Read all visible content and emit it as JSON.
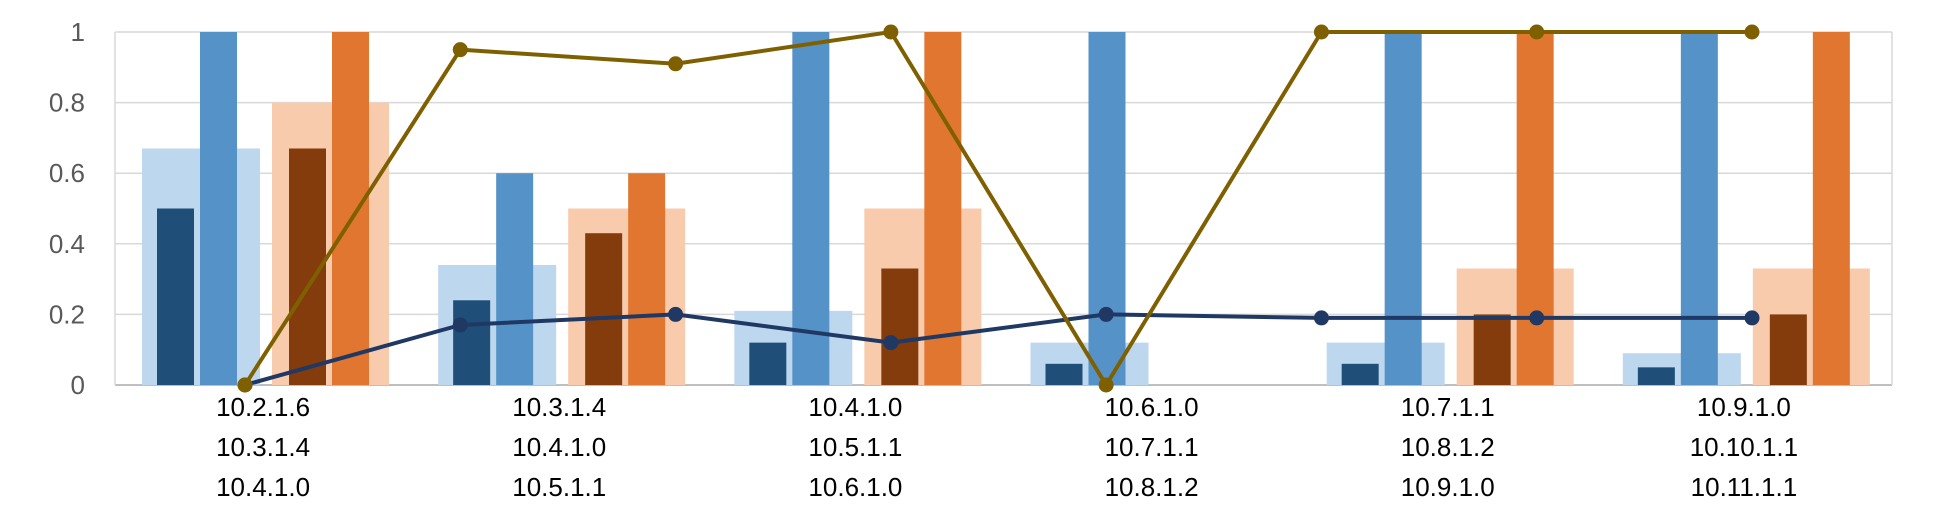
{
  "chart_data": {
    "type": "bar",
    "title": "",
    "xlabel": "",
    "ylabel": "",
    "ylim": [
      0,
      1
    ],
    "yticks": [
      "0",
      "0.2",
      "0.4",
      "0.6",
      "0.8",
      "1"
    ],
    "grid": true,
    "legend": "none",
    "categories": [
      [
        "10.2.1.6",
        "10.3.1.4",
        "10.4.1.0"
      ],
      [
        "10.3.1.4",
        "10.4.1.0",
        "10.5.1.1"
      ],
      [
        "10.4.1.0",
        "10.5.1.1",
        "10.6.1.0"
      ],
      [
        "10.6.1.0",
        "10.7.1.1",
        "10.8.1.2"
      ],
      [
        "10.7.1.1",
        "10.8.1.2",
        "10.9.1.0"
      ],
      [
        "10.9.1.0",
        "10.10.1.1",
        "10.11.1.1"
      ]
    ],
    "bar_series": [
      {
        "key": "blue_wide",
        "color": "#bdd7ee",
        "values": [
          0.67,
          0.34,
          0.21,
          0.12,
          0.12,
          0.09
        ]
      },
      {
        "key": "blue_dark",
        "color": "#1f4e79",
        "values": [
          0.5,
          0.24,
          0.12,
          0.06,
          0.06,
          0.05
        ]
      },
      {
        "key": "blue_mid",
        "color": "#5592c8",
        "values": [
          1.0,
          0.6,
          1.0,
          1.0,
          1.0,
          1.0
        ]
      },
      {
        "key": "orange_wide",
        "color": "#f8cbad",
        "values": [
          0.8,
          0.5,
          0.5,
          0.0,
          0.33,
          0.33
        ]
      },
      {
        "key": "orange_dark",
        "color": "#843c0c",
        "values": [
          0.67,
          0.43,
          0.33,
          0.0,
          0.2,
          0.2
        ]
      },
      {
        "key": "orange_mid",
        "color": "#e07630",
        "values": [
          1.0,
          0.6,
          1.0,
          0.0,
          1.0,
          1.0
        ]
      }
    ],
    "line_series": [
      {
        "key": "navy_line",
        "color": "#203864",
        "values": [
          0.0,
          0.17,
          0.2,
          0.12,
          0.2,
          0.19,
          0.19,
          0.19
        ]
      },
      {
        "key": "gold_line",
        "color": "#7f6000",
        "values": [
          0.0,
          0.95,
          0.91,
          1.0,
          0.0,
          1.0,
          1.0,
          1.0
        ]
      }
    ]
  }
}
